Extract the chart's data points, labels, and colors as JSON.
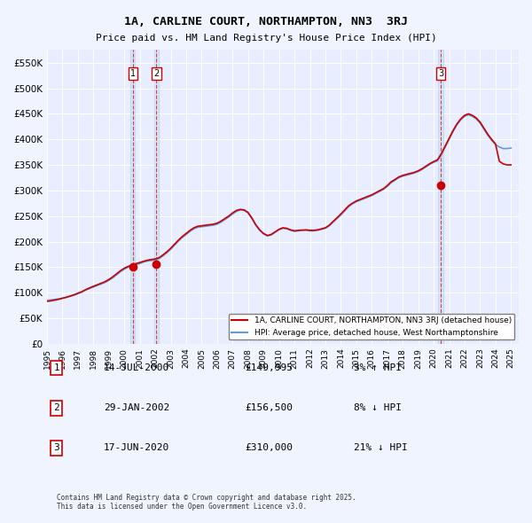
{
  "title": "1A, CARLINE COURT, NORTHAMPTON, NN3  3RJ",
  "subtitle": "Price paid vs. HM Land Registry's House Price Index (HPI)",
  "background_color": "#f0f4ff",
  "plot_bg_color": "#e8eeff",
  "ylabel": "",
  "ylim": [
    0,
    575000
  ],
  "yticks": [
    0,
    50000,
    100000,
    150000,
    200000,
    250000,
    300000,
    350000,
    400000,
    450000,
    500000,
    550000
  ],
  "ytick_labels": [
    "£0",
    "£50K",
    "£100K",
    "£150K",
    "£200K",
    "£250K",
    "£300K",
    "£350K",
    "£400K",
    "£450K",
    "£500K",
    "£550K"
  ],
  "sale_dates": [
    2000.54,
    2002.08,
    2020.46
  ],
  "sale_prices": [
    149995,
    156500,
    310000
  ],
  "sale_labels": [
    "1",
    "2",
    "3"
  ],
  "hpi_color": "#6699cc",
  "price_color": "#cc0000",
  "vline_color": "#cc0000",
  "marker_color": "#cc0000",
  "legend_label_price": "1A, CARLINE COURT, NORTHAMPTON, NN3 3RJ (detached house)",
  "legend_label_hpi": "HPI: Average price, detached house, West Northamptonshire",
  "table_entries": [
    {
      "num": "1",
      "date": "14-JUL-2000",
      "price": "£149,995",
      "rel": "3% ↑ HPI"
    },
    {
      "num": "2",
      "date": "29-JAN-2002",
      "price": "£156,500",
      "rel": "8% ↓ HPI"
    },
    {
      "num": "3",
      "date": "17-JUN-2020",
      "price": "£310,000",
      "rel": "21% ↓ HPI"
    }
  ],
  "footnote": "Contains HM Land Registry data © Crown copyright and database right 2025.\nThis data is licensed under the Open Government Licence v3.0.",
  "hpi_data_x": [
    1995.0,
    1995.25,
    1995.5,
    1995.75,
    1996.0,
    1996.25,
    1996.5,
    1996.75,
    1997.0,
    1997.25,
    1997.5,
    1997.75,
    1998.0,
    1998.25,
    1998.5,
    1998.75,
    1999.0,
    1999.25,
    1999.5,
    1999.75,
    2000.0,
    2000.25,
    2000.5,
    2000.75,
    2001.0,
    2001.25,
    2001.5,
    2001.75,
    2002.0,
    2002.25,
    2002.5,
    2002.75,
    2003.0,
    2003.25,
    2003.5,
    2003.75,
    2004.0,
    2004.25,
    2004.5,
    2004.75,
    2005.0,
    2005.25,
    2005.5,
    2005.75,
    2006.0,
    2006.25,
    2006.5,
    2006.75,
    2007.0,
    2007.25,
    2007.5,
    2007.75,
    2008.0,
    2008.25,
    2008.5,
    2008.75,
    2009.0,
    2009.25,
    2009.5,
    2009.75,
    2010.0,
    2010.25,
    2010.5,
    2010.75,
    2011.0,
    2011.25,
    2011.5,
    2011.75,
    2012.0,
    2012.25,
    2012.5,
    2012.75,
    2013.0,
    2013.25,
    2013.5,
    2013.75,
    2014.0,
    2014.25,
    2014.5,
    2014.75,
    2015.0,
    2015.25,
    2015.5,
    2015.75,
    2016.0,
    2016.25,
    2016.5,
    2016.75,
    2017.0,
    2017.25,
    2017.5,
    2017.75,
    2018.0,
    2018.25,
    2018.5,
    2018.75,
    2019.0,
    2019.25,
    2019.5,
    2019.75,
    2020.0,
    2020.25,
    2020.5,
    2020.75,
    2021.0,
    2021.25,
    2021.5,
    2021.75,
    2022.0,
    2022.25,
    2022.5,
    2022.75,
    2023.0,
    2023.25,
    2023.5,
    2023.75,
    2024.0,
    2024.25,
    2024.5,
    2024.75,
    2025.0
  ],
  "hpi_data_y": [
    85000,
    86000,
    87000,
    88000,
    89500,
    91000,
    93000,
    95000,
    98000,
    101000,
    105000,
    108000,
    111000,
    114000,
    117000,
    120000,
    124000,
    129000,
    135000,
    141000,
    146000,
    150000,
    153000,
    155000,
    157000,
    160000,
    162000,
    163000,
    164000,
    167000,
    172000,
    178000,
    185000,
    193000,
    201000,
    208000,
    214000,
    220000,
    225000,
    228000,
    229000,
    230000,
    231000,
    232000,
    234000,
    238000,
    243000,
    248000,
    254000,
    259000,
    262000,
    261000,
    256000,
    245000,
    232000,
    222000,
    215000,
    211000,
    213000,
    218000,
    223000,
    226000,
    225000,
    222000,
    220000,
    221000,
    222000,
    222000,
    221000,
    221000,
    222000,
    224000,
    226000,
    231000,
    238000,
    245000,
    252000,
    260000,
    268000,
    274000,
    278000,
    281000,
    284000,
    287000,
    290000,
    294000,
    298000,
    302000,
    308000,
    315000,
    320000,
    325000,
    328000,
    330000,
    332000,
    334000,
    337000,
    341000,
    346000,
    351000,
    355000,
    358000,
    370000,
    385000,
    400000,
    415000,
    428000,
    438000,
    445000,
    448000,
    445000,
    440000,
    432000,
    420000,
    408000,
    398000,
    390000,
    385000,
    382000,
    382000,
    383000
  ],
  "price_data_x": [
    1995.0,
    1995.25,
    1995.5,
    1995.75,
    1996.0,
    1996.25,
    1996.5,
    1996.75,
    1997.0,
    1997.25,
    1997.5,
    1997.75,
    1998.0,
    1998.25,
    1998.5,
    1998.75,
    1999.0,
    1999.25,
    1999.5,
    1999.75,
    2000.0,
    2000.25,
    2000.5,
    2000.75,
    2001.0,
    2001.25,
    2001.5,
    2001.75,
    2002.0,
    2002.25,
    2002.5,
    2002.75,
    2003.0,
    2003.25,
    2003.5,
    2003.75,
    2004.0,
    2004.25,
    2004.5,
    2004.75,
    2005.0,
    2005.25,
    2005.5,
    2005.75,
    2006.0,
    2006.25,
    2006.5,
    2006.75,
    2007.0,
    2007.25,
    2007.5,
    2007.75,
    2008.0,
    2008.25,
    2008.5,
    2008.75,
    2009.0,
    2009.25,
    2009.5,
    2009.75,
    2010.0,
    2010.25,
    2010.5,
    2010.75,
    2011.0,
    2011.25,
    2011.5,
    2011.75,
    2012.0,
    2012.25,
    2012.5,
    2012.75,
    2013.0,
    2013.25,
    2013.5,
    2013.75,
    2014.0,
    2014.25,
    2014.5,
    2014.75,
    2015.0,
    2015.25,
    2015.5,
    2015.75,
    2016.0,
    2016.25,
    2016.5,
    2016.75,
    2017.0,
    2017.25,
    2017.5,
    2017.75,
    2018.0,
    2018.25,
    2018.5,
    2018.75,
    2019.0,
    2019.25,
    2019.5,
    2019.75,
    2020.0,
    2020.25,
    2020.5,
    2020.75,
    2021.0,
    2021.25,
    2021.5,
    2021.75,
    2022.0,
    2022.25,
    2022.5,
    2022.75,
    2023.0,
    2023.25,
    2023.5,
    2023.75,
    2024.0,
    2024.25,
    2024.5,
    2024.75,
    2025.0
  ],
  "price_data_y": [
    83000,
    84000,
    85500,
    87000,
    89000,
    91000,
    93500,
    96000,
    99000,
    102000,
    106000,
    109500,
    112500,
    115500,
    118500,
    121500,
    126000,
    131000,
    137000,
    143000,
    148000,
    151500,
    154000,
    157000,
    159000,
    161500,
    163500,
    165000,
    166000,
    168500,
    174000,
    180000,
    187000,
    195000,
    203000,
    210000,
    216000,
    222000,
    227000,
    230000,
    231000,
    232000,
    233000,
    234000,
    236000,
    240000,
    245000,
    250000,
    256000,
    261000,
    263000,
    262000,
    257000,
    246000,
    233000,
    223000,
    216000,
    212000,
    214000,
    219000,
    224000,
    227000,
    226000,
    223000,
    221000,
    222000,
    222500,
    223000,
    222000,
    222000,
    223000,
    225000,
    227000,
    232000,
    239500,
    246500,
    254000,
    262000,
    270000,
    275000,
    279500,
    282500,
    285500,
    288500,
    291500,
    295500,
    299500,
    303500,
    309500,
    317000,
    321500,
    326500,
    329500,
    331500,
    333500,
    335500,
    338500,
    342500,
    347500,
    352500,
    356500,
    360000,
    372000,
    387000,
    402000,
    417000,
    430000,
    440000,
    447000,
    450000,
    447000,
    442000,
    434000,
    422000,
    410000,
    400000,
    391000,
    357000,
    352000,
    350000,
    350000
  ]
}
